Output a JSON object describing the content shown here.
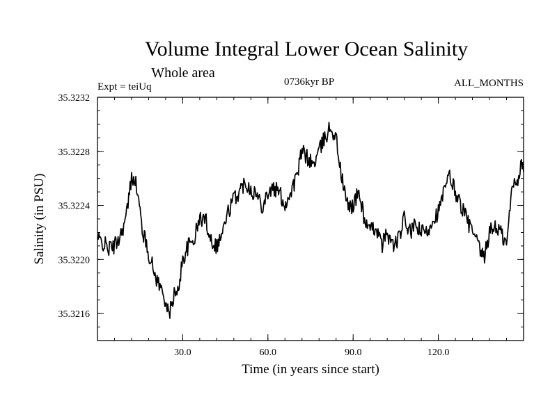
{
  "chart_data": {
    "type": "line",
    "title": "Volume Integral Lower Ocean Salinity",
    "subtitle": "Whole area",
    "experiment_label": "Expt = teiUq",
    "period_label": "0736kyr BP",
    "months_label": "ALL_MONTHS",
    "xlabel": "Time (in years since start)",
    "ylabel": "Salinity (in PSU)",
    "xlim": [
      0,
      150
    ],
    "ylim": [
      35.3214,
      35.3232
    ],
    "x_ticks": [
      30,
      60,
      90,
      120
    ],
    "x_tick_labels": [
      "30.0",
      "60.0",
      "90.0",
      "120.0"
    ],
    "y_ticks": [
      35.3216,
      35.322,
      35.3224,
      35.3228,
      35.3232
    ],
    "y_tick_labels": [
      "35.3216",
      "35.3220",
      "35.3224",
      "35.3228",
      "35.3232"
    ],
    "grid": false,
    "series": [
      {
        "name": "salinity",
        "x": [
          0,
          2,
          4,
          6,
          8,
          10,
          11,
          12,
          13,
          14,
          16,
          18,
          20,
          22,
          24,
          25,
          26,
          27,
          28,
          30,
          32,
          34,
          36,
          38,
          40,
          42,
          44,
          46,
          48,
          50,
          52,
          54,
          56,
          58,
          60,
          62,
          64,
          66,
          68,
          70,
          72,
          74,
          76,
          78,
          80,
          82,
          84,
          86,
          88,
          90,
          92,
          94,
          96,
          98,
          100,
          102,
          104,
          106,
          108,
          110,
          112,
          114,
          116,
          118,
          120,
          122,
          124,
          126,
          128,
          130,
          132,
          134,
          136,
          138,
          140,
          142,
          144,
          146,
          148,
          149,
          150
        ],
        "y": [
          35.32215,
          35.32212,
          35.32208,
          35.3221,
          35.32218,
          35.3223,
          35.32245,
          35.3226,
          35.32262,
          35.3225,
          35.3222,
          35.32205,
          35.3219,
          35.3218,
          35.3217,
          35.32158,
          35.32165,
          35.32175,
          35.32172,
          35.322,
          35.3221,
          35.32215,
          35.3223,
          35.3223,
          35.32215,
          35.3221,
          35.3222,
          35.32235,
          35.32245,
          35.3225,
          35.32258,
          35.32252,
          35.32248,
          35.3224,
          35.3225,
          35.32252,
          35.3225,
          35.3224,
          35.3225,
          35.3226,
          35.3228,
          35.32275,
          35.3227,
          35.3228,
          35.3229,
          35.32298,
          35.3229,
          35.3226,
          35.3224,
          35.3224,
          35.3225,
          35.3223,
          35.3222,
          35.32225,
          35.3221,
          35.3222,
          35.3221,
          35.32215,
          35.3223,
          35.3222,
          35.32225,
          35.3222,
          35.3222,
          35.3223,
          35.32235,
          35.3225,
          35.32262,
          35.3225,
          35.3224,
          35.3223,
          35.3222,
          35.3221,
          35.322,
          35.3222,
          35.32225,
          35.3222,
          35.3221,
          35.32255,
          35.3226,
          35.3227,
          35.32265
        ]
      }
    ]
  }
}
